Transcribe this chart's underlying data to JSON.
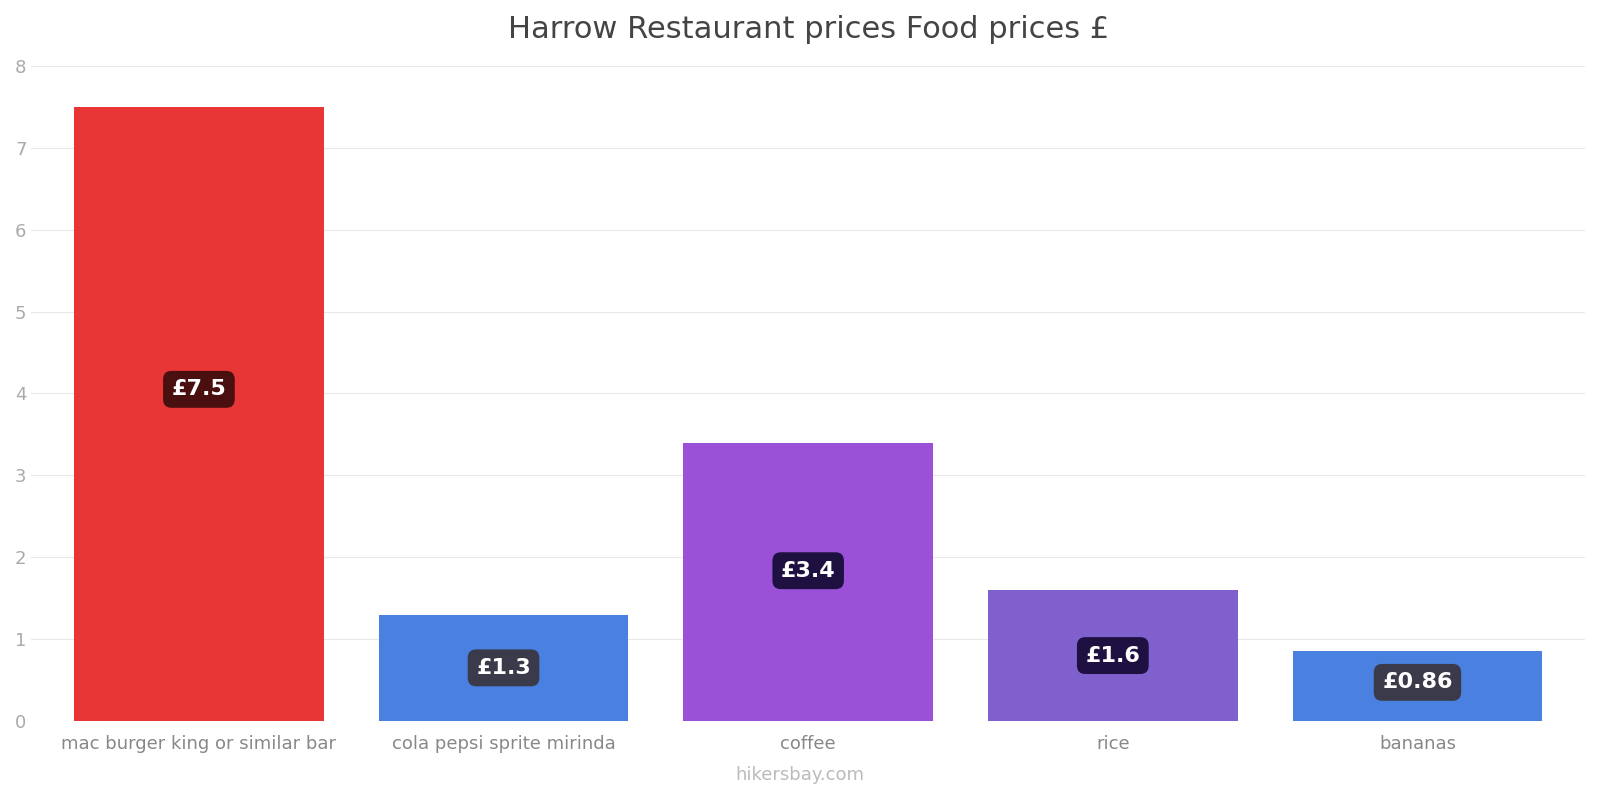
{
  "title": "Harrow Restaurant prices Food prices £",
  "categories": [
    "mac burger king or similar bar",
    "cola pepsi sprite mirinda",
    "coffee",
    "rice",
    "bananas"
  ],
  "values": [
    7.5,
    1.3,
    3.4,
    1.6,
    0.86
  ],
  "bar_colors": [
    "#e83535",
    "#4a80e0",
    "#9b50d8",
    "#8060cc",
    "#4a80e0"
  ],
  "label_texts": [
    "£7.5",
    "£1.3",
    "£3.4",
    "£1.6",
    "£0.86"
  ],
  "label_box_colors": [
    "#4a0f0f",
    "#3a3a4a",
    "#1e1040",
    "#1e1040",
    "#3a3a4a"
  ],
  "ylim": [
    0,
    8
  ],
  "yticks": [
    0,
    1,
    2,
    3,
    4,
    5,
    6,
    7,
    8
  ],
  "footer_text": "hikersbay.com",
  "background_color": "#ffffff",
  "title_fontsize": 22,
  "tick_fontsize": 13,
  "label_fontsize": 16,
  "footer_fontsize": 13,
  "bar_width": 0.82
}
